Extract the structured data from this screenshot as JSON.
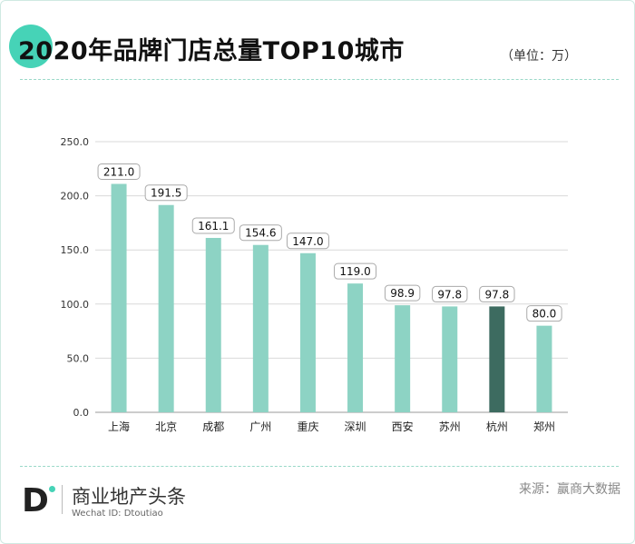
{
  "header": {
    "title": "2020年品牌门店总量TOP10城市",
    "unit_label": "（单位：万）"
  },
  "footer": {
    "logo_letter": "D",
    "brand_name": "商业地产头条",
    "wechat_id": "Wechat ID: Dtoutiao",
    "source": "来源：赢商大数据"
  },
  "colors": {
    "bar": "#8dd3c4",
    "highlight_bar": "#3d6b60",
    "accent": "#46d3b7",
    "grid": "#d9d9d9"
  },
  "chart_data": {
    "type": "bar",
    "title": "2020年品牌门店总量TOP10城市",
    "categories": [
      "上海",
      "北京",
      "成都",
      "广州",
      "重庆",
      "深圳",
      "西安",
      "苏州",
      "杭州",
      "郑州"
    ],
    "values": [
      211.0,
      191.5,
      161.1,
      154.6,
      147.0,
      119.0,
      98.9,
      97.8,
      97.8,
      80.0
    ],
    "value_labels": [
      "211.0",
      "191.5",
      "161.1",
      "154.6",
      "147.0",
      "119.0",
      "98.9",
      "97.8",
      "97.8",
      "80.0"
    ],
    "highlight_category": "杭州",
    "ylim": [
      0,
      250
    ],
    "yticks": [
      0,
      50,
      100,
      150,
      200,
      250
    ],
    "ytick_labels": [
      "0.0",
      "50.0",
      "100.0",
      "150.0",
      "200.0",
      "250.0"
    ],
    "grid": true,
    "legend": "none",
    "xlabel": "",
    "ylabel": ""
  }
}
